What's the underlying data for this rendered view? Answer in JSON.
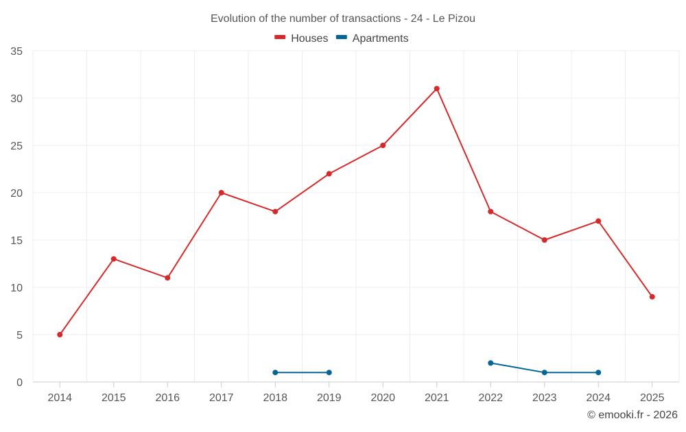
{
  "chart_data": {
    "type": "line",
    "title": "Evolution of the number of transactions - 24 - Le Pizou",
    "xlabel": "",
    "ylabel": "",
    "categories": [
      "2014",
      "2015",
      "2016",
      "2017",
      "2018",
      "2019",
      "2020",
      "2021",
      "2022",
      "2023",
      "2024",
      "2025"
    ],
    "ylim": [
      0,
      35
    ],
    "yticks": [
      0,
      5,
      10,
      15,
      20,
      25,
      30,
      35
    ],
    "grid": true,
    "legend_position": "top-center",
    "series": [
      {
        "name": "Houses",
        "color": "#d62a2a",
        "values": [
          5,
          13,
          11,
          20,
          18,
          22,
          25,
          31,
          18,
          15,
          17,
          9
        ]
      },
      {
        "name": "Apartments",
        "color": "#056597",
        "values": [
          null,
          null,
          null,
          null,
          1,
          1,
          null,
          null,
          2,
          1,
          1,
          null
        ]
      }
    ],
    "credit": "© emooki.fr - 2026"
  }
}
